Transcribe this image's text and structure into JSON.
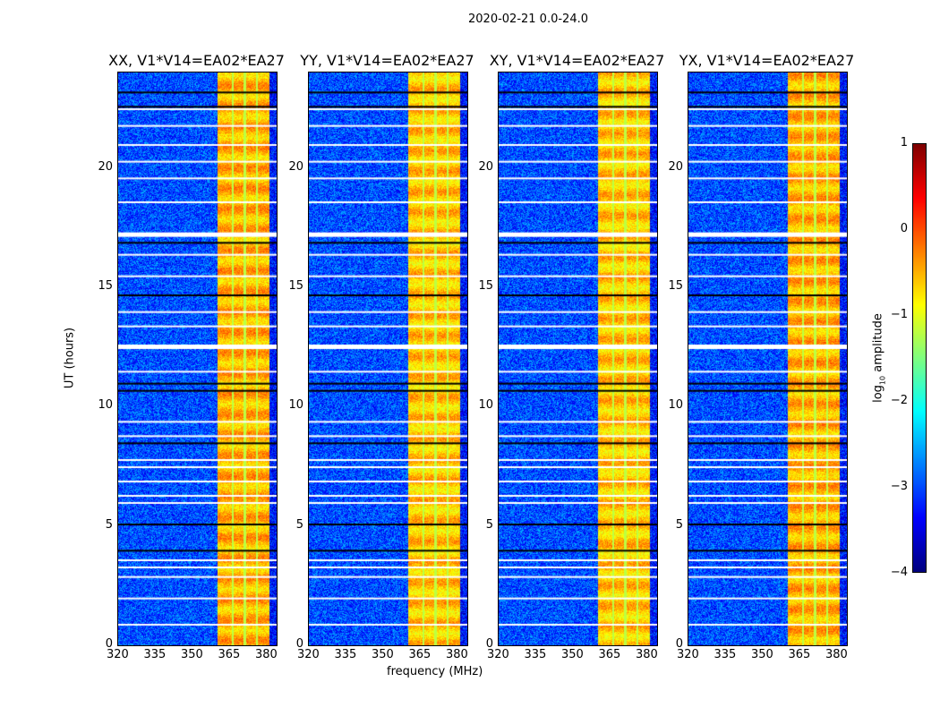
{
  "suptitle": "2020-02-21 0.0-24.0",
  "chart_data": {
    "type": "heatmap",
    "title": "2020-02-21 0.0-24.0",
    "xlabel": "frequency (MHz)",
    "ylabel": "UT (hours)",
    "xlim": [
      320,
      384
    ],
    "ylim": [
      0,
      24
    ],
    "xticks": [
      "320",
      "335",
      "350",
      "365",
      "380"
    ],
    "yticks": [
      "0",
      "5",
      "10",
      "15",
      "20"
    ],
    "panels": [
      {
        "title": "XX, V1*V14=EA02*EA27"
      },
      {
        "title": "YY, V1*V14=EA02*EA27"
      },
      {
        "title": "XY, V1*V14=EA02*EA27"
      },
      {
        "title": "YX, V1*V14=EA02*EA27"
      }
    ],
    "background_log10_amplitude": -3,
    "bright_band_mhz": [
      360,
      381
    ],
    "bright_band_log10_amplitude": -0.6,
    "bright_band_gaps_mhz": [
      366,
      371,
      376
    ],
    "flagged_rows_white_hours": [
      0.9,
      2.0,
      2.9,
      3.3,
      3.6,
      6.0,
      6.3,
      6.9,
      7.5,
      7.8,
      8.8,
      9.4,
      11.5,
      12.6,
      13.4,
      14.0,
      15.5,
      16.4,
      17.3,
      18.6,
      19.6,
      20.3,
      21.0,
      21.8,
      22.5
    ],
    "flagged_rows_black_hours": [
      4.0,
      5.1,
      8.5,
      10.7,
      11.0,
      14.7,
      16.9,
      22.6,
      23.2
    ],
    "colorbar": {
      "label": "log10 amplitude",
      "label_main": "log",
      "label_sub": "10",
      "label_rest": " amplitude",
      "range": [
        -4,
        1
      ],
      "ticks": [
        "1",
        "0",
        "−1",
        "−2",
        "−3",
        "−4"
      ],
      "colormap": "jet"
    }
  }
}
